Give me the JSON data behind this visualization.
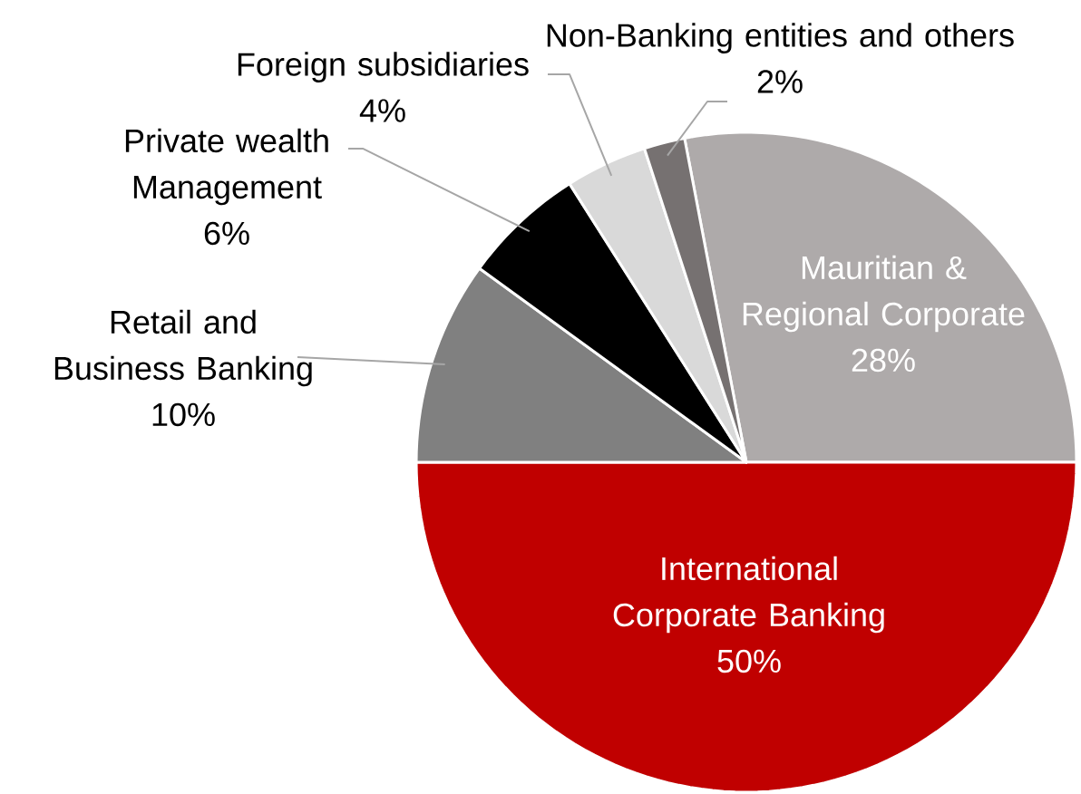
{
  "chart_data": {
    "type": "pie",
    "categories": [
      "Mauritian & Regional Corporate",
      "International Corporate Banking",
      "Retail and Business Banking",
      "Private wealth Management",
      "Foreign subsidiaries",
      "Non-Banking entities and others"
    ],
    "values": [
      28,
      50,
      10,
      6,
      4,
      2
    ],
    "colors": [
      "#aeaaaa",
      "#c00000",
      "#808080",
      "#000000",
      "#d9d9d9",
      "#767171"
    ],
    "value_labels": [
      "28%",
      "50%",
      "10%",
      "6%",
      "4%",
      "2%"
    ],
    "legend": false
  }
}
